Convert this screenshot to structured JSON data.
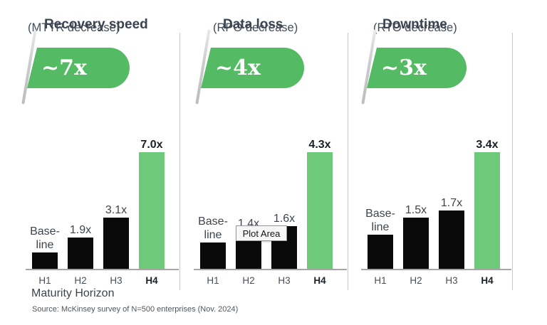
{
  "page": {
    "x_axis_title": "Maturity Horizon",
    "source_note": "Source: McKinsey survey of N=500 enterprises (Nov. 2024)",
    "tooltip_label": "Plot Area"
  },
  "colors": {
    "badge_green": "#54BB64",
    "bar_green": "#6FC97A",
    "bar_black": "#0A0A0A",
    "title_text": "#3A4350",
    "label_text": "#3E444D",
    "highlight_text": "#1B2026",
    "axis_line": "#A6A6A6",
    "divider": "#C8C8C8"
  },
  "chart_data": [
    {
      "type": "bar",
      "title": "Recovery speed",
      "subtitle": "(MTTR decrease)",
      "badge": "~7x",
      "categories": [
        "H1",
        "H2",
        "H3",
        "H4"
      ],
      "values": [
        1.0,
        1.9,
        3.1,
        7.0
      ],
      "bar_labels": [
        "Base-\nline",
        "1.9x",
        "3.1x",
        "7.0x"
      ],
      "highlight_index": 3,
      "xlabel": "Maturity Horizon",
      "ylim": [
        0,
        7.0
      ]
    },
    {
      "type": "bar",
      "title": "Data loss",
      "subtitle": "(RPO decrease)",
      "badge": "~4x",
      "categories": [
        "H1",
        "H2",
        "H3",
        "H4"
      ],
      "values": [
        1.0,
        1.4,
        1.6,
        4.3
      ],
      "bar_labels": [
        "Base-\nline",
        "1.4x",
        "1.6x",
        "4.3x"
      ],
      "highlight_index": 3,
      "xlabel": "Maturity Horizon",
      "ylim": [
        0,
        4.3
      ]
    },
    {
      "type": "bar",
      "title": "Downtime",
      "subtitle": "(RTO decrease)",
      "badge": "~3x",
      "categories": [
        "H1",
        "H2",
        "H3",
        "H4"
      ],
      "values": [
        1.0,
        1.5,
        1.7,
        3.4
      ],
      "bar_labels": [
        "Base-\nline",
        "1.5x",
        "1.7x",
        "3.4x"
      ],
      "highlight_index": 3,
      "xlabel": "Maturity Horizon",
      "ylim": [
        0,
        3.4
      ]
    }
  ]
}
